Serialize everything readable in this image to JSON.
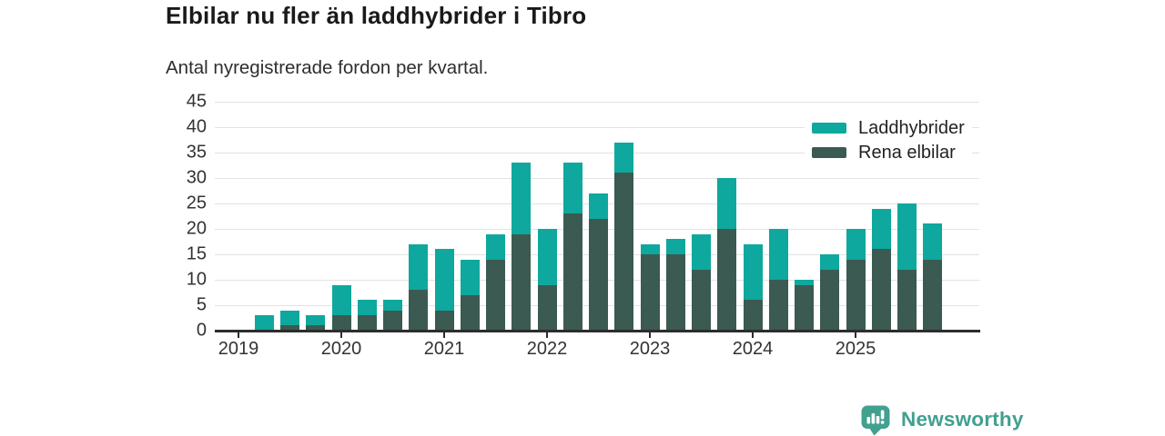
{
  "header": {
    "title": "Elbilar nu fler än laddhybrider i Tibro",
    "subtitle": "Antal nyregistrerade fordon per kvartal."
  },
  "footer": {
    "brand": "Newsworthy",
    "logo_color": "#42a08f"
  },
  "colors": {
    "laddhybrider": "#0ea89e",
    "rena_elbilar": "#3b5a52",
    "gridline": "#e2e2e2",
    "axis": "#2d2d2d",
    "axis_text": "#333333"
  },
  "chart_data": {
    "type": "bar",
    "stacked": true,
    "title": "Elbilar nu fler än laddhybrider i Tibro",
    "subtitle": "Antal nyregistrerade fordon per kvartal.",
    "categories": [
      "2019 Q1",
      "2019 Q2",
      "2019 Q3",
      "2019 Q4",
      "2020 Q1",
      "2020 Q2",
      "2020 Q3",
      "2020 Q4",
      "2021 Q1",
      "2021 Q2",
      "2021 Q3",
      "2021 Q4",
      "2022 Q1",
      "2022 Q2",
      "2022 Q3",
      "2022 Q4",
      "2023 Q1",
      "2023 Q2",
      "2023 Q3",
      "2023 Q4",
      "2024 Q1",
      "2024 Q2",
      "2024 Q3",
      "2024 Q4",
      "2025 Q1",
      "2025 Q2",
      "2025 Q3",
      "2025 Q4"
    ],
    "series": [
      {
        "name": "Laddhybrider",
        "color": "#0ea89e",
        "values": [
          0,
          3,
          3,
          2,
          6,
          3,
          2,
          9,
          12,
          7,
          5,
          14,
          11,
          10,
          5,
          6,
          2,
          3,
          7,
          10,
          11,
          10,
          1,
          3,
          6,
          8,
          13,
          7
        ]
      },
      {
        "name": "Rena elbilar",
        "color": "#3b5a52",
        "values": [
          0,
          0,
          1,
          1,
          3,
          3,
          4,
          8,
          4,
          7,
          14,
          19,
          9,
          23,
          22,
          31,
          15,
          15,
          12,
          20,
          6,
          10,
          9,
          12,
          14,
          16,
          12,
          14
        ]
      }
    ],
    "stack_order_bottom_to_top": [
      "Rena elbilar",
      "Laddhybrider"
    ],
    "totals": [
      0,
      3,
      4,
      3,
      9,
      6,
      6,
      17,
      16,
      14,
      19,
      33,
      20,
      33,
      27,
      37,
      17,
      18,
      19,
      30,
      17,
      20,
      10,
      15,
      20,
      24,
      25,
      21
    ],
    "ylim": [
      0,
      45
    ],
    "yticks": [
      0,
      5,
      10,
      15,
      20,
      25,
      30,
      35,
      40,
      45
    ],
    "xtick_labels": [
      "2019",
      "2020",
      "2021",
      "2022",
      "2023",
      "2024",
      "2025"
    ],
    "grid": "horizontal",
    "legend_position": "top-right"
  }
}
